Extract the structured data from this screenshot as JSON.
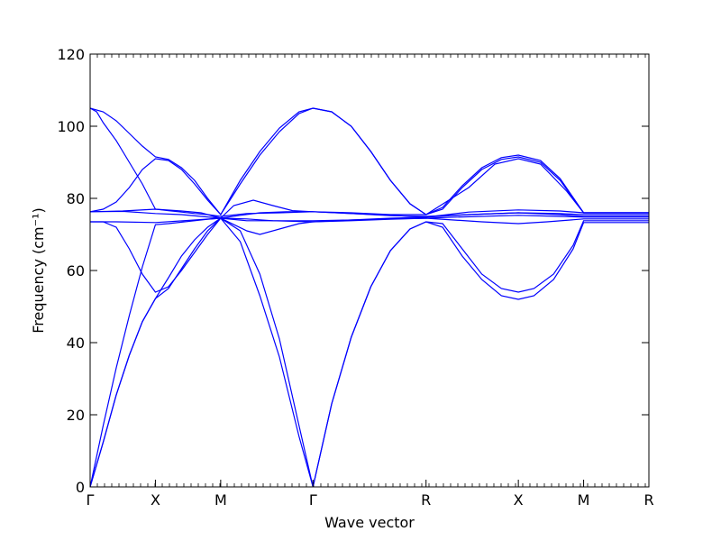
{
  "chart_data": {
    "type": "line",
    "title": "",
    "xlabel": "Wave vector",
    "ylabel": "Frequency (cm⁻¹)",
    "ylim": [
      0,
      120
    ],
    "yticks": [
      0,
      20,
      40,
      60,
      80,
      100,
      120
    ],
    "grid": false,
    "legend": "none",
    "line_color": "#0000ff",
    "x_high_symmetry_points": [
      {
        "label": "Γ",
        "x": 0.0
      },
      {
        "label": "X",
        "x": 0.5
      },
      {
        "label": "M",
        "x": 1.0
      },
      {
        "label": "Γ",
        "x": 1.707
      },
      {
        "label": "R",
        "x": 2.573
      },
      {
        "label": "X",
        "x": 3.28
      },
      {
        "label": "M",
        "x": 3.78
      },
      {
        "label": "R",
        "x": 4.28
      }
    ],
    "series": [
      {
        "points": [
          [
            0,
            0
          ],
          [
            0.1,
            12.4
          ],
          [
            0.2,
            25.5
          ],
          [
            0.3,
            36.5
          ],
          [
            0.4,
            45.8
          ],
          [
            0.5,
            52.2
          ],
          [
            0.6,
            58.0
          ],
          [
            0.7,
            64.0
          ],
          [
            0.8,
            68.5
          ],
          [
            0.9,
            72.0
          ],
          [
            1.0,
            74.5
          ],
          [
            1.15,
            71.0
          ],
          [
            1.3,
            59.0
          ],
          [
            1.45,
            41.0
          ],
          [
            1.6,
            17.0
          ],
          [
            1.707,
            0
          ],
          [
            1.85,
            23.0
          ],
          [
            2.0,
            41.5
          ],
          [
            2.15,
            55.5
          ],
          [
            2.3,
            65.5
          ],
          [
            2.45,
            71.5
          ],
          [
            2.573,
            73.5
          ],
          [
            2.7,
            72.0
          ],
          [
            2.85,
            64.0
          ],
          [
            3.0,
            57.5
          ],
          [
            3.15,
            53.0
          ],
          [
            3.28,
            52.0
          ],
          [
            3.4,
            53.0
          ],
          [
            3.55,
            57.5
          ],
          [
            3.7,
            66.0
          ],
          [
            3.78,
            73.3
          ],
          [
            4.0,
            73.3
          ],
          [
            4.28,
            73.3
          ]
        ]
      },
      {
        "points": [
          [
            0,
            0
          ],
          [
            0.1,
            12.4
          ],
          [
            0.2,
            25.5
          ],
          [
            0.3,
            36.5
          ],
          [
            0.4,
            45.8
          ],
          [
            0.5,
            52.2
          ],
          [
            0.6,
            55.0
          ],
          [
            0.7,
            60.5
          ],
          [
            0.8,
            66.0
          ],
          [
            0.9,
            71.0
          ],
          [
            1.0,
            74.5
          ],
          [
            1.15,
            68.0
          ],
          [
            1.3,
            53.0
          ],
          [
            1.45,
            36.0
          ],
          [
            1.6,
            14.0
          ],
          [
            1.707,
            0
          ],
          [
            1.85,
            23.0
          ],
          [
            2.0,
            41.5
          ],
          [
            2.15,
            55.5
          ],
          [
            2.3,
            65.5
          ],
          [
            2.45,
            71.5
          ],
          [
            2.573,
            73.5
          ],
          [
            2.7,
            73.0
          ],
          [
            2.85,
            66.0
          ],
          [
            3.0,
            59.0
          ],
          [
            3.15,
            55.0
          ],
          [
            3.28,
            54.0
          ],
          [
            3.4,
            55.0
          ],
          [
            3.55,
            59.0
          ],
          [
            3.7,
            67.0
          ],
          [
            3.78,
            73.8
          ],
          [
            4.0,
            73.8
          ],
          [
            4.28,
            73.8
          ]
        ]
      },
      {
        "points": [
          [
            0,
            0
          ],
          [
            0.1,
            17.0
          ],
          [
            0.2,
            33.0
          ],
          [
            0.3,
            47.5
          ],
          [
            0.4,
            61.0
          ],
          [
            0.5,
            72.7
          ],
          [
            0.6,
            73.0
          ],
          [
            0.7,
            73.4
          ],
          [
            0.8,
            73.8
          ],
          [
            0.9,
            74.2
          ],
          [
            1.0,
            74.5
          ],
          [
            1.2,
            73.8
          ],
          [
            1.4,
            73.8
          ],
          [
            1.707,
            73.8
          ],
          [
            2.0,
            74.0
          ],
          [
            2.3,
            74.3
          ],
          [
            2.573,
            74.5
          ],
          [
            3.0,
            73.5
          ],
          [
            3.28,
            73.0
          ],
          [
            3.5,
            73.5
          ],
          [
            3.78,
            74.3
          ],
          [
            4.0,
            74.3
          ],
          [
            4.28,
            74.3
          ]
        ]
      },
      {
        "points": [
          [
            0,
            73.5
          ],
          [
            0.1,
            73.5
          ],
          [
            0.2,
            72.0
          ],
          [
            0.3,
            66.0
          ],
          [
            0.4,
            59.0
          ],
          [
            0.5,
            54.0
          ],
          [
            0.6,
            55.5
          ],
          [
            0.7,
            60.0
          ],
          [
            0.8,
            65.0
          ],
          [
            0.9,
            70.0
          ],
          [
            1.0,
            74.5
          ],
          [
            1.2,
            71.0
          ],
          [
            1.3,
            70.0
          ],
          [
            1.45,
            71.5
          ],
          [
            1.6,
            73.0
          ],
          [
            1.707,
            73.5
          ],
          [
            2.0,
            73.8
          ],
          [
            2.3,
            74.2
          ],
          [
            2.573,
            74.5
          ],
          [
            2.8,
            74.8
          ],
          [
            3.28,
            75.3
          ],
          [
            3.6,
            75.0
          ],
          [
            3.78,
            74.8
          ],
          [
            4.28,
            74.8
          ]
        ]
      },
      {
        "points": [
          [
            0,
            73.5
          ],
          [
            0.2,
            73.5
          ],
          [
            0.5,
            73.3
          ],
          [
            0.8,
            74.0
          ],
          [
            1.0,
            74.5
          ],
          [
            1.2,
            74.3
          ],
          [
            1.4,
            73.8
          ],
          [
            1.707,
            73.5
          ],
          [
            2.0,
            74.0
          ],
          [
            2.3,
            74.5
          ],
          [
            2.573,
            74.8
          ],
          [
            2.9,
            75.5
          ],
          [
            3.28,
            76.0
          ],
          [
            3.6,
            75.8
          ],
          [
            3.78,
            75.5
          ],
          [
            4.28,
            75.5
          ]
        ]
      },
      {
        "points": [
          [
            0,
            76.3
          ],
          [
            0.25,
            76.4
          ],
          [
            0.5,
            75.8
          ],
          [
            0.7,
            75.5
          ],
          [
            0.85,
            75.0
          ],
          [
            1.0,
            74.5
          ],
          [
            1.15,
            75.3
          ],
          [
            1.3,
            76.0
          ],
          [
            1.5,
            76.3
          ],
          [
            1.707,
            76.3
          ],
          [
            2.0,
            75.8
          ],
          [
            2.3,
            75.3
          ],
          [
            2.573,
            74.8
          ],
          [
            2.9,
            76.2
          ],
          [
            3.28,
            76.8
          ],
          [
            3.6,
            76.5
          ],
          [
            3.78,
            76.0
          ],
          [
            4.28,
            76.0
          ]
        ]
      },
      {
        "points": [
          [
            0,
            76.3
          ],
          [
            0.25,
            76.5
          ],
          [
            0.5,
            77.0
          ],
          [
            0.7,
            76.5
          ],
          [
            0.85,
            76.0
          ],
          [
            1.0,
            74.5
          ],
          [
            1.1,
            78.0
          ],
          [
            1.25,
            79.5
          ],
          [
            1.4,
            78.0
          ],
          [
            1.55,
            76.6
          ],
          [
            1.707,
            76.3
          ],
          [
            2.0,
            76.0
          ],
          [
            2.3,
            75.5
          ],
          [
            2.573,
            75.5
          ],
          [
            2.9,
            83.0
          ],
          [
            3.1,
            89.5
          ],
          [
            3.28,
            91.0
          ],
          [
            3.45,
            89.5
          ],
          [
            3.65,
            82.0
          ],
          [
            3.78,
            76.0
          ],
          [
            4.28,
            76.0
          ]
        ]
      },
      {
        "points": [
          [
            0,
            76.3
          ],
          [
            0.1,
            77.0
          ],
          [
            0.2,
            79.0
          ],
          [
            0.3,
            83.0
          ],
          [
            0.4,
            88.0
          ],
          [
            0.5,
            91.0
          ],
          [
            0.6,
            90.5
          ],
          [
            0.7,
            88.0
          ],
          [
            0.8,
            84.0
          ],
          [
            0.9,
            79.5
          ],
          [
            1.0,
            75.5
          ],
          [
            1.15,
            85.0
          ],
          [
            1.3,
            93.0
          ],
          [
            1.45,
            99.5
          ],
          [
            1.6,
            104.0
          ],
          [
            1.707,
            105.0
          ],
          [
            1.85,
            104.0
          ],
          [
            2.0,
            100.0
          ],
          [
            2.15,
            93.0
          ],
          [
            2.3,
            85.0
          ],
          [
            2.45,
            78.5
          ],
          [
            2.573,
            75.5
          ],
          [
            2.7,
            77.0
          ],
          [
            2.85,
            83.0
          ],
          [
            3.0,
            88.0
          ],
          [
            3.15,
            90.8
          ],
          [
            3.28,
            91.5
          ],
          [
            3.45,
            90.0
          ],
          [
            3.6,
            85.0
          ],
          [
            3.78,
            76.0
          ],
          [
            4.28,
            76.0
          ]
        ]
      },
      {
        "points": [
          [
            0,
            105.0
          ],
          [
            0.1,
            104.0
          ],
          [
            0.2,
            101.5
          ],
          [
            0.3,
            98.0
          ],
          [
            0.4,
            94.5
          ],
          [
            0.5,
            91.5
          ],
          [
            0.6,
            90.8
          ],
          [
            0.7,
            88.5
          ],
          [
            0.8,
            85.0
          ],
          [
            0.9,
            80.0
          ],
          [
            1.0,
            75.5
          ],
          [
            1.15,
            84.0
          ],
          [
            1.3,
            92.0
          ],
          [
            1.45,
            98.5
          ],
          [
            1.6,
            103.5
          ],
          [
            1.707,
            105.0
          ],
          [
            1.85,
            104.0
          ],
          [
            2.0,
            100.0
          ],
          [
            2.15,
            93.0
          ],
          [
            2.3,
            85.0
          ],
          [
            2.45,
            78.5
          ],
          [
            2.573,
            75.5
          ],
          [
            2.7,
            77.5
          ],
          [
            2.85,
            83.5
          ],
          [
            3.0,
            88.5
          ],
          [
            3.15,
            91.3
          ],
          [
            3.28,
            92.0
          ],
          [
            3.45,
            90.5
          ],
          [
            3.6,
            85.5
          ],
          [
            3.78,
            76.0
          ],
          [
            4.28,
            76.0
          ]
        ]
      },
      {
        "points": [
          [
            0,
            105.0
          ],
          [
            0.05,
            104.0
          ],
          [
            0.1,
            101.0
          ],
          [
            0.2,
            96.0
          ],
          [
            0.3,
            90.0
          ],
          [
            0.4,
            84.0
          ],
          [
            0.5,
            77.0
          ],
          [
            0.6,
            76.6
          ],
          [
            0.7,
            76.2
          ],
          [
            0.8,
            75.8
          ],
          [
            0.9,
            75.5
          ],
          [
            1.0,
            75.0
          ],
          [
            1.2,
            75.8
          ],
          [
            1.45,
            76.0
          ],
          [
            1.707,
            76.3
          ],
          [
            2.0,
            75.8
          ],
          [
            2.3,
            75.2
          ],
          [
            2.573,
            75.0
          ],
          [
            2.9,
            75.5
          ],
          [
            3.28,
            76.0
          ],
          [
            3.6,
            75.5
          ],
          [
            3.78,
            75.0
          ],
          [
            4.28,
            75.0
          ]
        ]
      }
    ]
  }
}
